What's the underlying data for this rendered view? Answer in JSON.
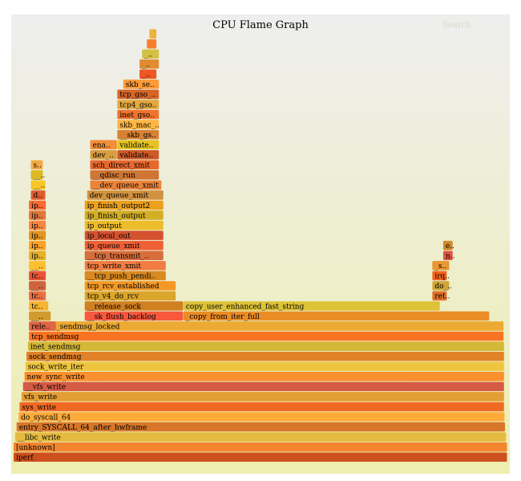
{
  "title": "CPU Flame Graph",
  "search_label": "Search",
  "colors": {
    "frame_top": "#eeeeee",
    "frame_bottom": "#eeeeb0"
  },
  "chart_data": {
    "type": "flamegraph",
    "title": "CPU Flame Graph",
    "frames": [
      {
        "label": "iperf",
        "start": 0.0,
        "width": 1.0,
        "depth": 0
      },
      {
        "label": "[unknown]",
        "start": 0.0,
        "width": 1.0,
        "depth": 1
      },
      {
        "label": "__libc_write",
        "start": 0.003,
        "width": 0.995,
        "depth": 2
      },
      {
        "label": "entry_SYSCALL_64_after_hwframe",
        "start": 0.006,
        "width": 0.99,
        "depth": 3
      },
      {
        "label": "do_syscall_64",
        "start": 0.01,
        "width": 0.985,
        "depth": 4
      },
      {
        "label": "sys_write",
        "start": 0.012,
        "width": 0.982,
        "depth": 5
      },
      {
        "label": "vfs_write",
        "start": 0.016,
        "width": 0.978,
        "depth": 6
      },
      {
        "label": "__vfs_write",
        "start": 0.019,
        "width": 0.975,
        "depth": 7
      },
      {
        "label": "new_sync_write",
        "start": 0.022,
        "width": 0.972,
        "depth": 8
      },
      {
        "label": "sock_write_iter",
        "start": 0.024,
        "width": 0.97,
        "depth": 9
      },
      {
        "label": "sock_sendmsg",
        "start": 0.026,
        "width": 0.968,
        "depth": 10
      },
      {
        "label": "inet_sendmsg",
        "start": 0.029,
        "width": 0.965,
        "depth": 11
      },
      {
        "label": "tcp_sendmsg",
        "start": 0.031,
        "width": 0.962,
        "depth": 12
      },
      {
        "label": "tcp_sendmsg_locked",
        "start": 0.058,
        "width": 0.935,
        "depth": 13
      },
      {
        "label": "rele..",
        "start": 0.031,
        "width": 0.055,
        "depth": 13
      },
      {
        "label": "__..",
        "start": 0.031,
        "width": 0.045,
        "depth": 14
      },
      {
        "label": "__sk_flush_backlog",
        "start": 0.144,
        "width": 0.2,
        "depth": 14
      },
      {
        "label": "_copy_from_iter_full",
        "start": 0.344,
        "width": 0.62,
        "depth": 14
      },
      {
        "label": "copy_user_enhanced_fast_string",
        "start": 0.344,
        "width": 0.52,
        "depth": 15
      },
      {
        "label": "__release_sock",
        "start": 0.144,
        "width": 0.2,
        "depth": 15
      },
      {
        "label": "tc..",
        "start": 0.031,
        "width": 0.04,
        "depth": 15
      },
      {
        "label": "tc..",
        "start": 0.031,
        "width": 0.035,
        "depth": 16
      },
      {
        "label": "tcp_v4_do_rcv",
        "start": 0.144,
        "width": 0.185,
        "depth": 16
      },
      {
        "label": "__..",
        "start": 0.031,
        "width": 0.035,
        "depth": 17
      },
      {
        "label": "tcp_rcv_established",
        "start": 0.144,
        "width": 0.185,
        "depth": 17
      },
      {
        "label": "tc..",
        "start": 0.031,
        "width": 0.035,
        "depth": 18
      },
      {
        "label": "__tcp_push_pendi..",
        "start": 0.144,
        "width": 0.165,
        "depth": 18
      },
      {
        "label": "__..",
        "start": 0.031,
        "width": 0.035,
        "depth": 19
      },
      {
        "label": "tcp_write_xmit",
        "start": 0.144,
        "width": 0.165,
        "depth": 19
      },
      {
        "label": "ip..",
        "start": 0.031,
        "width": 0.035,
        "depth": 20
      },
      {
        "label": "__tcp_transmit_..",
        "start": 0.144,
        "width": 0.16,
        "depth": 20
      },
      {
        "label": "ip..",
        "start": 0.031,
        "width": 0.035,
        "depth": 21
      },
      {
        "label": "ip_queue_xmit",
        "start": 0.144,
        "width": 0.16,
        "depth": 21
      },
      {
        "label": "ip..",
        "start": 0.031,
        "width": 0.035,
        "depth": 22
      },
      {
        "label": "ip_local_out",
        "start": 0.144,
        "width": 0.16,
        "depth": 22
      },
      {
        "label": "ip..",
        "start": 0.031,
        "width": 0.035,
        "depth": 23
      },
      {
        "label": "ip_output",
        "start": 0.144,
        "width": 0.16,
        "depth": 23
      },
      {
        "label": "ip..",
        "start": 0.031,
        "width": 0.035,
        "depth": 24
      },
      {
        "label": "ip_finish_output",
        "start": 0.144,
        "width": 0.16,
        "depth": 24
      },
      {
        "label": "ip..",
        "start": 0.031,
        "width": 0.035,
        "depth": 25
      },
      {
        "label": "ip_finish_output2",
        "start": 0.144,
        "width": 0.16,
        "depth": 25
      },
      {
        "label": "d..",
        "start": 0.035,
        "width": 0.03,
        "depth": 26
      },
      {
        "label": "dev_queue_xmit",
        "start": 0.149,
        "width": 0.155,
        "depth": 26
      },
      {
        "label": "__..",
        "start": 0.035,
        "width": 0.03,
        "depth": 27
      },
      {
        "label": "__dev_queue_xmit",
        "start": 0.155,
        "width": 0.145,
        "depth": 27
      },
      {
        "label": "__..",
        "start": 0.035,
        "width": 0.025,
        "depth": 28
      },
      {
        "label": "__qdisc_run",
        "start": 0.155,
        "width": 0.14,
        "depth": 28
      },
      {
        "label": "s..",
        "start": 0.035,
        "width": 0.025,
        "depth": 29
      },
      {
        "label": "sch_direct_xmit",
        "start": 0.155,
        "width": 0.14,
        "depth": 29
      },
      {
        "label": "dev_..",
        "start": 0.155,
        "width": 0.055,
        "depth": 30
      },
      {
        "label": "validate..",
        "start": 0.21,
        "width": 0.085,
        "depth": 30
      },
      {
        "label": "ena..",
        "start": 0.155,
        "width": 0.055,
        "depth": 31
      },
      {
        "label": "validate..",
        "start": 0.21,
        "width": 0.085,
        "depth": 31
      },
      {
        "label": "__skb_gs..",
        "start": 0.21,
        "width": 0.085,
        "depth": 32
      },
      {
        "label": "skb_mac_..",
        "start": 0.21,
        "width": 0.085,
        "depth": 33
      },
      {
        "label": "inet_gso..",
        "start": 0.21,
        "width": 0.085,
        "depth": 34
      },
      {
        "label": "tcp4_gso..",
        "start": 0.21,
        "width": 0.085,
        "depth": 35
      },
      {
        "label": "tcp_gso_..",
        "start": 0.21,
        "width": 0.085,
        "depth": 36
      },
      {
        "label": "skb_se..",
        "start": 0.222,
        "width": 0.073,
        "depth": 37
      },
      {
        "label": "_..",
        "start": 0.255,
        "width": 0.035,
        "depth": 38
      },
      {
        "label": "_..",
        "start": 0.255,
        "width": 0.04,
        "depth": 39
      },
      {
        "label": "_..",
        "start": 0.26,
        "width": 0.035,
        "depth": 40
      },
      {
        "label": "",
        "start": 0.27,
        "width": 0.02,
        "depth": 41
      },
      {
        "label": "",
        "start": 0.275,
        "width": 0.015,
        "depth": 42
      },
      {
        "label": "ret..",
        "start": 0.848,
        "width": 0.03,
        "depth": 16
      },
      {
        "label": "do_..",
        "start": 0.848,
        "width": 0.035,
        "depth": 17
      },
      {
        "label": "irq..",
        "start": 0.848,
        "width": 0.03,
        "depth": 18
      },
      {
        "label": "_s..",
        "start": 0.848,
        "width": 0.035,
        "depth": 19
      },
      {
        "label": "n..",
        "start": 0.87,
        "width": 0.02,
        "depth": 20
      },
      {
        "label": "e..",
        "start": 0.87,
        "width": 0.02,
        "depth": 21
      }
    ]
  }
}
